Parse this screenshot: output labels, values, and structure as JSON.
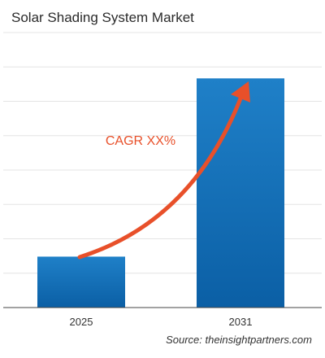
{
  "chart_data": {
    "type": "bar",
    "title": "Solar Shading System Market",
    "categories": [
      "2025",
      "2031"
    ],
    "values": [
      1,
      4.5
    ],
    "xlabel": "",
    "ylabel": "",
    "ylim": [
      0,
      5.4
    ],
    "grid": true,
    "legend": "none",
    "annotation": "CAGR XX%",
    "source": "Source: theinsightpartners.com"
  },
  "colors": {
    "bar_top": "#1f80c8",
    "bar_bottom": "#0b5fa5",
    "arrow": "#e8502a",
    "annotation": "#e8502a",
    "grid": "#e4e4e4",
    "axis": "#444444"
  }
}
